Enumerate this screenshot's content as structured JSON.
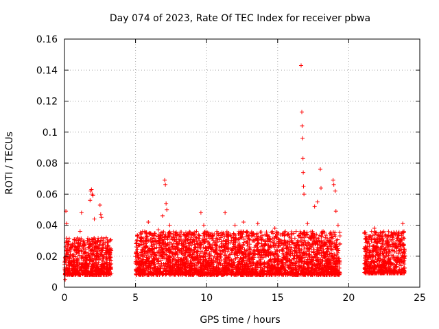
{
  "chart_data": {
    "type": "scatter",
    "title": "Day 074 of 2023, Rate Of TEC Index for receiver pbwa",
    "xlabel": "GPS time / hours",
    "ylabel": "ROTI / TECUs",
    "xlim": [
      0,
      25
    ],
    "ylim": [
      0,
      0.16
    ],
    "x_ticks": [
      "0",
      "5",
      "10",
      "15",
      "20",
      "25"
    ],
    "y_ticks": [
      "0",
      "0.02",
      "0.04",
      "0.06",
      "0.08",
      "0.1",
      "0.12",
      "0.14",
      "0.16"
    ],
    "grid": true,
    "marker": "+",
    "color": "#ff0000",
    "series": [
      {
        "name": "ROTI",
        "points": [
          [
            0.05,
            0.005
          ],
          [
            0.1,
            0.049
          ],
          [
            0.15,
            0.041
          ],
          [
            0.2,
            0.012
          ],
          [
            0.3,
            0.021
          ],
          [
            0.5,
            0.015
          ],
          [
            0.7,
            0.011
          ],
          [
            0.9,
            0.014
          ],
          [
            1.1,
            0.036
          ],
          [
            1.2,
            0.048
          ],
          [
            1.4,
            0.019
          ],
          [
            1.6,
            0.012
          ],
          [
            1.8,
            0.056
          ],
          [
            1.85,
            0.062
          ],
          [
            1.9,
            0.063
          ],
          [
            1.95,
            0.06
          ],
          [
            2.0,
            0.059
          ],
          [
            2.1,
            0.044
          ],
          [
            2.3,
            0.018
          ],
          [
            2.5,
            0.053
          ],
          [
            2.55,
            0.047
          ],
          [
            2.6,
            0.045
          ],
          [
            2.8,
            0.021
          ],
          [
            3.0,
            0.016
          ],
          [
            3.2,
            0.012
          ],
          [
            5.05,
            0.026
          ],
          [
            5.2,
            0.012
          ],
          [
            5.5,
            0.016
          ],
          [
            5.9,
            0.042
          ],
          [
            6.0,
            0.035
          ],
          [
            6.3,
            0.02
          ],
          [
            6.6,
            0.037
          ],
          [
            6.9,
            0.046
          ],
          [
            7.05,
            0.069
          ],
          [
            7.1,
            0.066
          ],
          [
            7.15,
            0.054
          ],
          [
            7.2,
            0.05
          ],
          [
            7.4,
            0.04
          ],
          [
            7.6,
            0.014
          ],
          [
            7.9,
            0.026
          ],
          [
            8.3,
            0.012
          ],
          [
            8.6,
            0.031
          ],
          [
            9.0,
            0.021
          ],
          [
            9.4,
            0.013
          ],
          [
            9.6,
            0.048
          ],
          [
            9.8,
            0.04
          ],
          [
            10.2,
            0.02
          ],
          [
            10.6,
            0.011
          ],
          [
            11.0,
            0.032
          ],
          [
            11.3,
            0.048
          ],
          [
            11.6,
            0.015
          ],
          [
            12.0,
            0.04
          ],
          [
            12.3,
            0.027
          ],
          [
            12.6,
            0.042
          ],
          [
            12.9,
            0.013
          ],
          [
            13.2,
            0.03
          ],
          [
            13.6,
            0.041
          ],
          [
            14.0,
            0.021
          ],
          [
            14.4,
            0.031
          ],
          [
            14.8,
            0.038
          ],
          [
            15.2,
            0.013
          ],
          [
            15.6,
            0.025
          ],
          [
            16.0,
            0.011
          ],
          [
            16.3,
            0.036
          ],
          [
            16.65,
            0.143
          ],
          [
            16.7,
            0.113
          ],
          [
            16.72,
            0.104
          ],
          [
            16.75,
            0.096
          ],
          [
            16.78,
            0.083
          ],
          [
            16.8,
            0.074
          ],
          [
            16.82,
            0.065
          ],
          [
            16.85,
            0.06
          ],
          [
            17.1,
            0.041
          ],
          [
            17.3,
            0.016
          ],
          [
            17.6,
            0.052
          ],
          [
            17.8,
            0.055
          ],
          [
            18.0,
            0.076
          ],
          [
            18.05,
            0.064
          ],
          [
            18.2,
            0.036
          ],
          [
            18.5,
            0.021
          ],
          [
            18.7,
            0.03
          ],
          [
            18.9,
            0.069
          ],
          [
            18.95,
            0.066
          ],
          [
            19.05,
            0.062
          ],
          [
            19.1,
            0.049
          ],
          [
            19.25,
            0.04
          ],
          [
            19.35,
            0.015
          ],
          [
            21.2,
            0.025
          ],
          [
            21.4,
            0.012
          ],
          [
            21.8,
            0.038
          ],
          [
            22.2,
            0.014
          ],
          [
            22.6,
            0.034
          ],
          [
            23.0,
            0.01
          ],
          [
            23.4,
            0.03
          ],
          [
            23.8,
            0.041
          ],
          [
            23.9,
            0.015
          ]
        ],
        "dense_bands": [
          {
            "x_start": 0.0,
            "x_end": 3.3,
            "y_min": 0.004,
            "y_max": 0.032
          },
          {
            "x_start": 5.0,
            "x_end": 19.4,
            "y_min": 0.004,
            "y_max": 0.036
          },
          {
            "x_start": 21.1,
            "x_end": 23.95,
            "y_min": 0.005,
            "y_max": 0.036
          }
        ]
      }
    ]
  }
}
